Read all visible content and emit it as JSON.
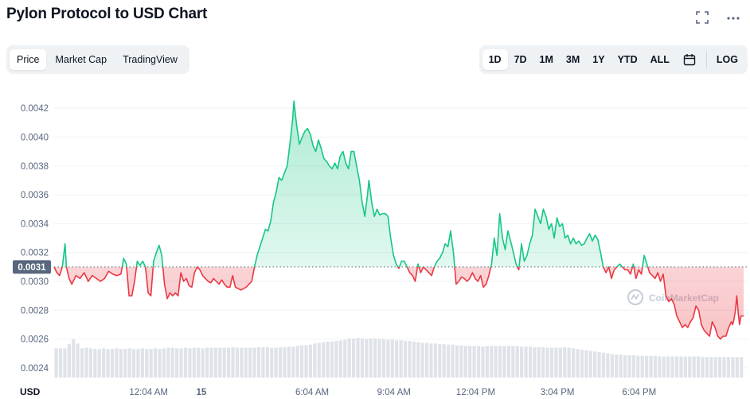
{
  "header": {
    "title": "Pylon Protocol to USD Chart",
    "fullscreen_icon": "fullscreen-icon",
    "more_icon": "more-icon"
  },
  "tabs": [
    "Price",
    "Market Cap",
    "TradingView"
  ],
  "active_tab": "Price",
  "ranges": [
    "1D",
    "7D",
    "1M",
    "3M",
    "1Y",
    "YTD",
    "ALL"
  ],
  "active_range": "1D",
  "calendar_icon": "calendar-icon",
  "log_label": "LOG",
  "watermark": "CoinMarketCap",
  "colors": {
    "up": "#16c784",
    "down": "#ea3943",
    "volume": "#dfe3e9",
    "grid": "#eff2f5"
  },
  "chart_data": {
    "type": "area",
    "currency_label": "USD",
    "current_price_label": "0.0031",
    "baseline": 0.0031,
    "y_ticks": [
      "0.0042",
      "0.0040",
      "0.0038",
      "0.0036",
      "0.0034",
      "0.0032",
      "0.0030",
      "0.0028",
      "0.0026",
      "0.0024"
    ],
    "ylim": [
      0.00235,
      0.0043
    ],
    "x_ticks": [
      "12:04 AM",
      "15",
      "6:04 AM",
      "9:04 AM",
      "12:04 PM",
      "3:04 PM",
      "6:04 PM"
    ],
    "x_tick_hours": [
      0.067,
      2.0,
      6.067,
      9.067,
      12.067,
      15.067,
      18.067
    ],
    "xlim_hours": [
      -3.4,
      21.9
    ],
    "price_series": [
      [
        -3.4,
        0.0031
      ],
      [
        -3.3,
        0.00306
      ],
      [
        -3.2,
        0.00304
      ],
      [
        -3.1,
        0.0031
      ],
      [
        -3.0,
        0.00326
      ],
      [
        -2.95,
        0.0031
      ],
      [
        -2.85,
        0.00302
      ],
      [
        -2.75,
        0.00298
      ],
      [
        -2.6,
        0.00304
      ],
      [
        -2.45,
        0.00302
      ],
      [
        -2.3,
        0.00306
      ],
      [
        -2.15,
        0.003
      ],
      [
        -2.0,
        0.00304
      ],
      [
        -1.85,
        0.00302
      ],
      [
        -1.7,
        0.003
      ],
      [
        -1.55,
        0.00302
      ],
      [
        -1.4,
        0.00307
      ],
      [
        -1.25,
        0.00305
      ],
      [
        -1.1,
        0.00304
      ],
      [
        -0.95,
        0.00305
      ],
      [
        -0.85,
        0.00316
      ],
      [
        -0.75,
        0.00312
      ],
      [
        -0.65,
        0.0029
      ],
      [
        -0.55,
        0.0029
      ],
      [
        -0.45,
        0.003
      ],
      [
        -0.35,
        0.00314
      ],
      [
        -0.25,
        0.00311
      ],
      [
        -0.15,
        0.00314
      ],
      [
        -0.05,
        0.0031
      ],
      [
        0.05,
        0.00292
      ],
      [
        0.15,
        0.0029
      ],
      [
        0.25,
        0.00314
      ],
      [
        0.35,
        0.0032
      ],
      [
        0.45,
        0.00325
      ],
      [
        0.55,
        0.00318
      ],
      [
        0.65,
        0.00298
      ],
      [
        0.75,
        0.00288
      ],
      [
        0.85,
        0.00292
      ],
      [
        0.95,
        0.0029
      ],
      [
        1.05,
        0.00292
      ],
      [
        1.15,
        0.0029
      ],
      [
        1.25,
        0.00306
      ],
      [
        1.35,
        0.003
      ],
      [
        1.45,
        0.00302
      ],
      [
        1.55,
        0.00297
      ],
      [
        1.65,
        0.00296
      ],
      [
        1.75,
        0.00306
      ],
      [
        1.85,
        0.0031
      ],
      [
        1.95,
        0.00308
      ],
      [
        2.05,
        0.00304
      ],
      [
        2.15,
        0.00302
      ],
      [
        2.25,
        0.003
      ],
      [
        2.35,
        0.00299
      ],
      [
        2.45,
        0.00302
      ],
      [
        2.55,
        0.003
      ],
      [
        2.65,
        0.00298
      ],
      [
        2.75,
        0.00301
      ],
      [
        2.85,
        0.00298
      ],
      [
        2.95,
        0.00296
      ],
      [
        3.05,
        0.00296
      ],
      [
        3.15,
        0.00304
      ],
      [
        3.25,
        0.00296
      ],
      [
        3.35,
        0.00295
      ],
      [
        3.45,
        0.00294
      ],
      [
        3.55,
        0.00295
      ],
      [
        3.65,
        0.00296
      ],
      [
        3.75,
        0.00298
      ],
      [
        3.85,
        0.003
      ],
      [
        3.95,
        0.0031
      ],
      [
        4.05,
        0.00318
      ],
      [
        4.15,
        0.00324
      ],
      [
        4.25,
        0.0033
      ],
      [
        4.35,
        0.00336
      ],
      [
        4.45,
        0.00335
      ],
      [
        4.55,
        0.00342
      ],
      [
        4.65,
        0.00355
      ],
      [
        4.75,
        0.00362
      ],
      [
        4.85,
        0.00372
      ],
      [
        4.95,
        0.0037
      ],
      [
        5.05,
        0.00375
      ],
      [
        5.15,
        0.0038
      ],
      [
        5.25,
        0.00395
      ],
      [
        5.35,
        0.00412
      ],
      [
        5.4,
        0.00425
      ],
      [
        5.5,
        0.00408
      ],
      [
        5.6,
        0.00395
      ],
      [
        5.7,
        0.004
      ],
      [
        5.8,
        0.00404
      ],
      [
        5.9,
        0.00406
      ],
      [
        6.0,
        0.00402
      ],
      [
        6.1,
        0.00394
      ],
      [
        6.2,
        0.0039
      ],
      [
        6.3,
        0.00398
      ],
      [
        6.4,
        0.00392
      ],
      [
        6.5,
        0.00385
      ],
      [
        6.6,
        0.00383
      ],
      [
        6.7,
        0.0038
      ],
      [
        6.8,
        0.00378
      ],
      [
        6.9,
        0.00382
      ],
      [
        7.0,
        0.00378
      ],
      [
        7.1,
        0.00387
      ],
      [
        7.2,
        0.0039
      ],
      [
        7.3,
        0.00382
      ],
      [
        7.4,
        0.00378
      ],
      [
        7.5,
        0.0039
      ],
      [
        7.6,
        0.0039
      ],
      [
        7.7,
        0.0038
      ],
      [
        7.8,
        0.0037
      ],
      [
        7.9,
        0.00355
      ],
      [
        8.0,
        0.00345
      ],
      [
        8.1,
        0.0036
      ],
      [
        8.15,
        0.0037
      ],
      [
        8.25,
        0.00355
      ],
      [
        8.35,
        0.00345
      ],
      [
        8.45,
        0.0035
      ],
      [
        8.55,
        0.00346
      ],
      [
        8.65,
        0.00347
      ],
      [
        8.75,
        0.00347
      ],
      [
        8.85,
        0.00345
      ],
      [
        8.95,
        0.0033
      ],
      [
        9.05,
        0.00318
      ],
      [
        9.15,
        0.00312
      ],
      [
        9.25,
        0.00309
      ],
      [
        9.35,
        0.00314
      ],
      [
        9.45,
        0.00314
      ],
      [
        9.55,
        0.0031
      ],
      [
        9.65,
        0.00306
      ],
      [
        9.75,
        0.00304
      ],
      [
        9.85,
        0.003
      ],
      [
        9.95,
        0.00312
      ],
      [
        10.05,
        0.00306
      ],
      [
        10.15,
        0.0031
      ],
      [
        10.25,
        0.00308
      ],
      [
        10.35,
        0.00306
      ],
      [
        10.45,
        0.00304
      ],
      [
        10.55,
        0.0031
      ],
      [
        10.65,
        0.00314
      ],
      [
        10.75,
        0.00316
      ],
      [
        10.85,
        0.0032
      ],
      [
        10.95,
        0.00326
      ],
      [
        11.05,
        0.00324
      ],
      [
        11.15,
        0.00335
      ],
      [
        11.25,
        0.0032
      ],
      [
        11.35,
        0.00298
      ],
      [
        11.45,
        0.003
      ],
      [
        11.55,
        0.00303
      ],
      [
        11.65,
        0.00302
      ],
      [
        11.75,
        0.003
      ],
      [
        11.85,
        0.00302
      ],
      [
        11.95,
        0.00306
      ],
      [
        12.05,
        0.00302
      ],
      [
        12.15,
        0.003
      ],
      [
        12.25,
        0.00304
      ],
      [
        12.35,
        0.00296
      ],
      [
        12.45,
        0.00298
      ],
      [
        12.55,
        0.00304
      ],
      [
        12.65,
        0.00312
      ],
      [
        12.75,
        0.0033
      ],
      [
        12.85,
        0.00318
      ],
      [
        12.95,
        0.00347
      ],
      [
        13.05,
        0.0033
      ],
      [
        13.15,
        0.00322
      ],
      [
        13.25,
        0.00335
      ],
      [
        13.35,
        0.00328
      ],
      [
        13.45,
        0.0032
      ],
      [
        13.55,
        0.00312
      ],
      [
        13.65,
        0.00308
      ],
      [
        13.75,
        0.00326
      ],
      [
        13.85,
        0.00314
      ],
      [
        13.95,
        0.00318
      ],
      [
        14.05,
        0.00326
      ],
      [
        14.15,
        0.00332
      ],
      [
        14.25,
        0.0035
      ],
      [
        14.35,
        0.00345
      ],
      [
        14.45,
        0.0034
      ],
      [
        14.55,
        0.0035
      ],
      [
        14.65,
        0.00345
      ],
      [
        14.75,
        0.00336
      ],
      [
        14.85,
        0.0034
      ],
      [
        14.95,
        0.0033
      ],
      [
        15.05,
        0.00344
      ],
      [
        15.15,
        0.00338
      ],
      [
        15.25,
        0.0034
      ],
      [
        15.35,
        0.0033
      ],
      [
        15.45,
        0.00332
      ],
      [
        15.55,
        0.00326
      ],
      [
        15.65,
        0.0033
      ],
      [
        15.75,
        0.00326
      ],
      [
        15.85,
        0.00328
      ],
      [
        15.95,
        0.00325
      ],
      [
        16.05,
        0.00326
      ],
      [
        16.15,
        0.0033
      ],
      [
        16.25,
        0.00333
      ],
      [
        16.35,
        0.00328
      ],
      [
        16.45,
        0.00332
      ],
      [
        16.55,
        0.00329
      ],
      [
        16.65,
        0.0032
      ],
      [
        16.75,
        0.0031
      ],
      [
        16.85,
        0.00306
      ],
      [
        16.95,
        0.0031
      ],
      [
        17.05,
        0.00302
      ],
      [
        17.15,
        0.00308
      ],
      [
        17.25,
        0.0031
      ],
      [
        17.35,
        0.00312
      ],
      [
        17.45,
        0.0031
      ],
      [
        17.55,
        0.00308
      ],
      [
        17.65,
        0.00308
      ],
      [
        17.75,
        0.00305
      ],
      [
        17.85,
        0.00312
      ],
      [
        17.95,
        0.00302
      ],
      [
        18.05,
        0.00308
      ],
      [
        18.15,
        0.00305
      ],
      [
        18.25,
        0.00318
      ],
      [
        18.35,
        0.00312
      ],
      [
        18.45,
        0.00306
      ],
      [
        18.55,
        0.00304
      ],
      [
        18.65,
        0.00302
      ],
      [
        18.75,
        0.00306
      ],
      [
        18.85,
        0.003
      ],
      [
        18.95,
        0.00305
      ],
      [
        19.05,
        0.0029
      ],
      [
        19.15,
        0.00286
      ],
      [
        19.25,
        0.00288
      ],
      [
        19.35,
        0.00284
      ],
      [
        19.45,
        0.00276
      ],
      [
        19.55,
        0.00272
      ],
      [
        19.65,
        0.00268
      ],
      [
        19.75,
        0.0027
      ],
      [
        19.85,
        0.00268
      ],
      [
        19.95,
        0.00272
      ],
      [
        20.05,
        0.00275
      ],
      [
        20.15,
        0.00283
      ],
      [
        20.25,
        0.0028
      ],
      [
        20.35,
        0.0027
      ],
      [
        20.45,
        0.00266
      ],
      [
        20.55,
        0.00264
      ],
      [
        20.65,
        0.00262
      ],
      [
        20.75,
        0.00272
      ],
      [
        20.85,
        0.00268
      ],
      [
        20.95,
        0.00262
      ],
      [
        21.05,
        0.0026
      ],
      [
        21.15,
        0.00262
      ],
      [
        21.25,
        0.00262
      ],
      [
        21.35,
        0.00268
      ],
      [
        21.45,
        0.00272
      ],
      [
        21.5,
        0.0027
      ],
      [
        21.55,
        0.00274
      ],
      [
        21.6,
        0.0028
      ],
      [
        21.65,
        0.0029
      ],
      [
        21.7,
        0.00278
      ],
      [
        21.75,
        0.0027
      ],
      [
        21.8,
        0.00276
      ],
      [
        21.85,
        0.00276
      ],
      [
        21.9,
        0.00276
      ]
    ],
    "volume_series": [
      0.47,
      0.47,
      0.47,
      0.54,
      0.62,
      0.55,
      0.47,
      0.48,
      0.47,
      0.46,
      0.46,
      0.47,
      0.46,
      0.46,
      0.47,
      0.46,
      0.46,
      0.47,
      0.46,
      0.46,
      0.47,
      0.46,
      0.46,
      0.47,
      0.46,
      0.47,
      0.48,
      0.48,
      0.47,
      0.47,
      0.48,
      0.47,
      0.48,
      0.48,
      0.47,
      0.48,
      0.48,
      0.48,
      0.48,
      0.48,
      0.48,
      0.49,
      0.48,
      0.48,
      0.48,
      0.48,
      0.48,
      0.49,
      0.49,
      0.49,
      0.48,
      0.48,
      0.49,
      0.49,
      0.5,
      0.5,
      0.51,
      0.52,
      0.52,
      0.53,
      0.55,
      0.56,
      0.57,
      0.58,
      0.58,
      0.59,
      0.6,
      0.61,
      0.63,
      0.63,
      0.64,
      0.63,
      0.62,
      0.63,
      0.63,
      0.62,
      0.62,
      0.61,
      0.61,
      0.6,
      0.6,
      0.59,
      0.59,
      0.58,
      0.57,
      0.56,
      0.56,
      0.55,
      0.55,
      0.54,
      0.54,
      0.53,
      0.53,
      0.52,
      0.52,
      0.51,
      0.51,
      0.51,
      0.51,
      0.5,
      0.51,
      0.51,
      0.51,
      0.51,
      0.51,
      0.51,
      0.51,
      0.51,
      0.5,
      0.5,
      0.5,
      0.49,
      0.49,
      0.49,
      0.48,
      0.48,
      0.48,
      0.48,
      0.49,
      0.48,
      0.47,
      0.46,
      0.45,
      0.44,
      0.43,
      0.42,
      0.41,
      0.4,
      0.39,
      0.38,
      0.37,
      0.37,
      0.36,
      0.36,
      0.36,
      0.35,
      0.35,
      0.35,
      0.35,
      0.35,
      0.34,
      0.34,
      0.34,
      0.34,
      0.34,
      0.34,
      0.34,
      0.34,
      0.34,
      0.34,
      0.33,
      0.33,
      0.33,
      0.33,
      0.33,
      0.33,
      0.33,
      0.33,
      0.33,
      0.33
    ]
  }
}
